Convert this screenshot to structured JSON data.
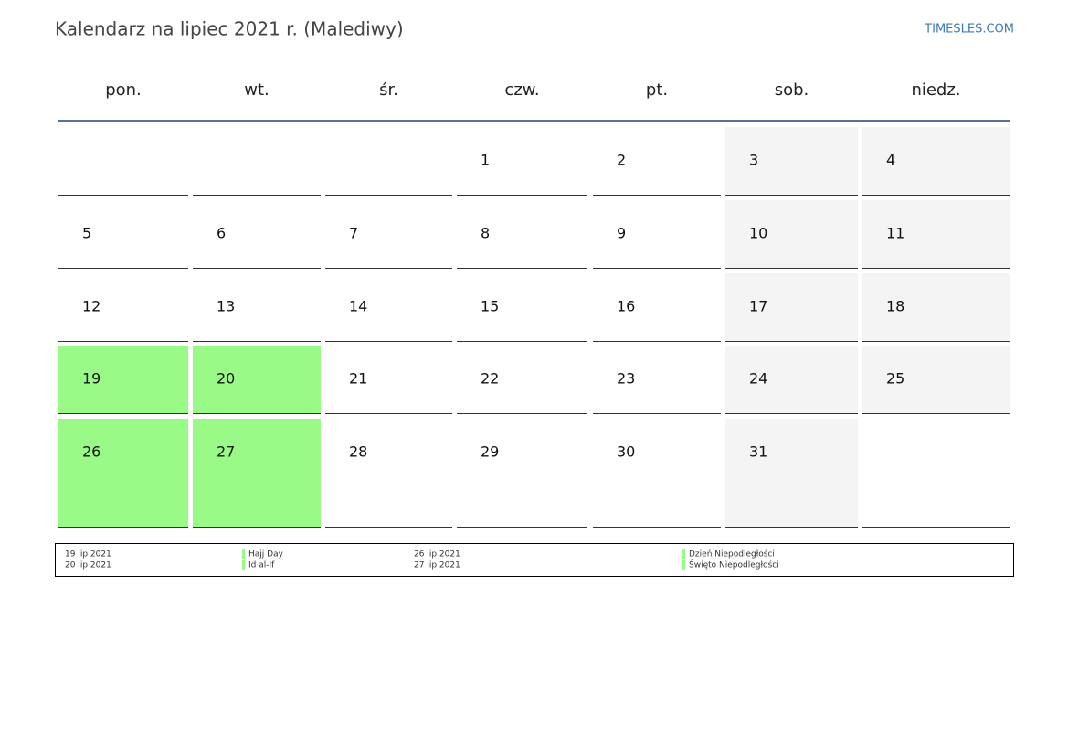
{
  "header": {
    "title": "Kalendarz na lipiec 2021 r. (Malediwy)",
    "site": "TIMESLES.COM"
  },
  "weekdays": [
    "pon.",
    "wt.",
    "śr.",
    "czw.",
    "pt.",
    "sob.",
    "niedz."
  ],
  "weeks": [
    [
      null,
      null,
      null,
      {
        "day": 1
      },
      {
        "day": 2
      },
      {
        "day": 3
      },
      {
        "day": 4
      }
    ],
    [
      {
        "day": 5
      },
      {
        "day": 6
      },
      {
        "day": 7
      },
      {
        "day": 8
      },
      {
        "day": 9
      },
      {
        "day": 10
      },
      {
        "day": 11
      }
    ],
    [
      {
        "day": 12
      },
      {
        "day": 13
      },
      {
        "day": 14
      },
      {
        "day": 15
      },
      {
        "day": 16
      },
      {
        "day": 17
      },
      {
        "day": 18
      }
    ],
    [
      {
        "day": 19,
        "holiday": true
      },
      {
        "day": 20,
        "holiday": true
      },
      {
        "day": 21
      },
      {
        "day": 22
      },
      {
        "day": 23
      },
      {
        "day": 24
      },
      {
        "day": 25
      }
    ],
    [
      {
        "day": 26,
        "holiday": true
      },
      {
        "day": 27,
        "holiday": true
      },
      {
        "day": 28
      },
      {
        "day": 29
      },
      {
        "day": 30
      },
      {
        "day": 31
      },
      null
    ]
  ],
  "holiday_color": "#99fa88",
  "legend": [
    {
      "date": "19 lip 2021",
      "name": "Hajj Day"
    },
    {
      "date": "20 lip 2021",
      "name": "Id al-If"
    },
    {
      "date": "26 lip 2021",
      "name": "Dzień Niepodległości"
    },
    {
      "date": "27 lip 2021",
      "name": "Święto Niepodległości"
    }
  ]
}
